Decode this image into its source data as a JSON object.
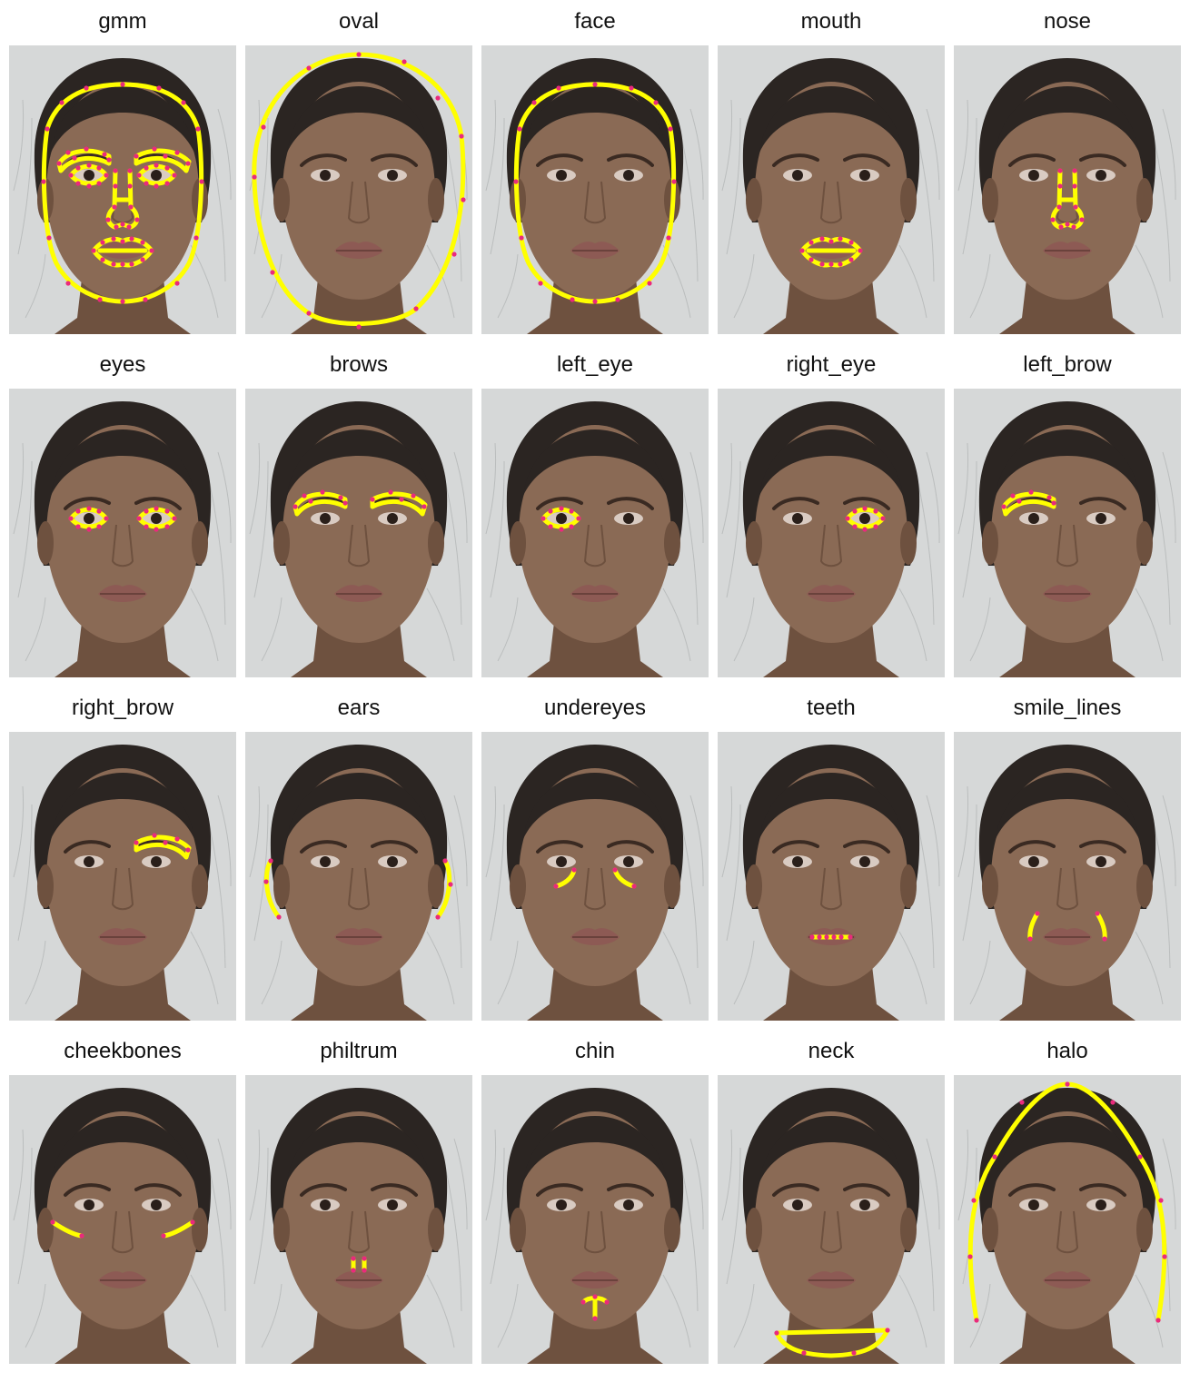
{
  "panels": [
    {
      "label": "gmm",
      "regions": [
        "face",
        "left_brow",
        "right_brow",
        "left_eye",
        "right_eye",
        "nose",
        "mouth"
      ]
    },
    {
      "label": "oval",
      "regions": [
        "oval"
      ]
    },
    {
      "label": "face",
      "regions": [
        "face"
      ]
    },
    {
      "label": "mouth",
      "regions": [
        "mouth"
      ]
    },
    {
      "label": "nose",
      "regions": [
        "nose"
      ]
    },
    {
      "label": "eyes",
      "regions": [
        "left_eye",
        "right_eye"
      ]
    },
    {
      "label": "brows",
      "regions": [
        "left_brow",
        "right_brow"
      ]
    },
    {
      "label": "left_eye",
      "regions": [
        "left_eye"
      ]
    },
    {
      "label": "right_eye",
      "regions": [
        "right_eye"
      ]
    },
    {
      "label": "left_brow",
      "regions": [
        "left_brow"
      ]
    },
    {
      "label": "right_brow",
      "regions": [
        "right_brow"
      ]
    },
    {
      "label": "ears",
      "regions": [
        "ears"
      ]
    },
    {
      "label": "undereyes",
      "regions": [
        "undereyes"
      ]
    },
    {
      "label": "teeth",
      "regions": [
        "teeth"
      ]
    },
    {
      "label": "smile_lines",
      "regions": [
        "smile_lines"
      ]
    },
    {
      "label": "cheekbones",
      "regions": [
        "cheekbones"
      ]
    },
    {
      "label": "philtrum",
      "regions": [
        "philtrum"
      ]
    },
    {
      "label": "chin",
      "regions": [
        "chin"
      ]
    },
    {
      "label": "neck",
      "regions": [
        "neck"
      ]
    },
    {
      "label": "halo",
      "regions": [
        "halo"
      ]
    }
  ],
  "colors": {
    "background": "#ffffff",
    "backdrop": "#d6d8d8",
    "hair": "#2b2522",
    "skin": "#8a6a55",
    "skin_shadow": "#6e513f",
    "lips": "#8d5a54",
    "outline": "#ffff00",
    "points": "#ea2a7c",
    "eye": "#2a1f1a"
  }
}
